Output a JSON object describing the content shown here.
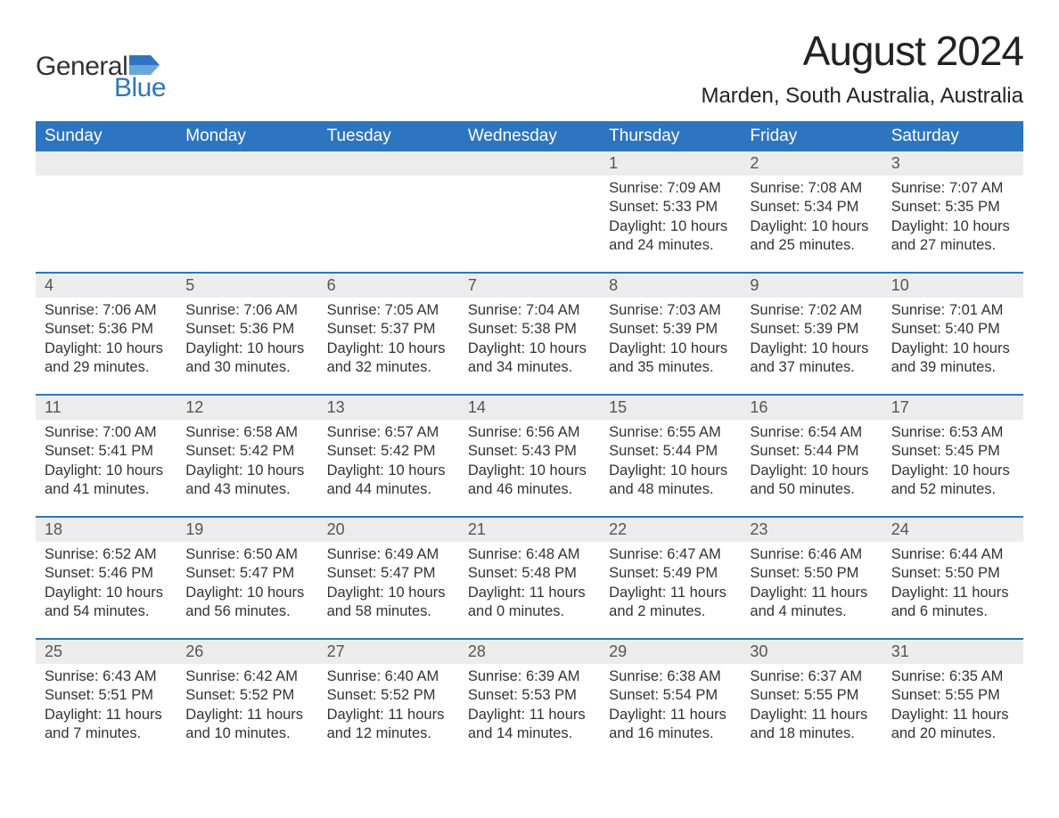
{
  "brand": {
    "text_general": "General",
    "text_blue": "Blue",
    "icon_color": "#2d75c0"
  },
  "title": "August 2024",
  "location": "Marden, South Australia, Australia",
  "style": {
    "header_bg": "#2d75c0",
    "header_text": "#ffffff",
    "daynum_bg": "#ececec",
    "row_border": "#2d75c0",
    "body_text": "#333333",
    "title_fontsize": 46,
    "location_fontsize": 24,
    "weekday_fontsize": 19,
    "daynum_fontsize": 18,
    "content_fontsize": 16.5
  },
  "weekdays": [
    "Sunday",
    "Monday",
    "Tuesday",
    "Wednesday",
    "Thursday",
    "Friday",
    "Saturday"
  ],
  "weeks": [
    [
      null,
      null,
      null,
      null,
      {
        "n": "1",
        "sunrise": "7:09 AM",
        "sunset": "5:33 PM",
        "daylight": "10 hours and 24 minutes."
      },
      {
        "n": "2",
        "sunrise": "7:08 AM",
        "sunset": "5:34 PM",
        "daylight": "10 hours and 25 minutes."
      },
      {
        "n": "3",
        "sunrise": "7:07 AM",
        "sunset": "5:35 PM",
        "daylight": "10 hours and 27 minutes."
      }
    ],
    [
      {
        "n": "4",
        "sunrise": "7:06 AM",
        "sunset": "5:36 PM",
        "daylight": "10 hours and 29 minutes."
      },
      {
        "n": "5",
        "sunrise": "7:06 AM",
        "sunset": "5:36 PM",
        "daylight": "10 hours and 30 minutes."
      },
      {
        "n": "6",
        "sunrise": "7:05 AM",
        "sunset": "5:37 PM",
        "daylight": "10 hours and 32 minutes."
      },
      {
        "n": "7",
        "sunrise": "7:04 AM",
        "sunset": "5:38 PM",
        "daylight": "10 hours and 34 minutes."
      },
      {
        "n": "8",
        "sunrise": "7:03 AM",
        "sunset": "5:39 PM",
        "daylight": "10 hours and 35 minutes."
      },
      {
        "n": "9",
        "sunrise": "7:02 AM",
        "sunset": "5:39 PM",
        "daylight": "10 hours and 37 minutes."
      },
      {
        "n": "10",
        "sunrise": "7:01 AM",
        "sunset": "5:40 PM",
        "daylight": "10 hours and 39 minutes."
      }
    ],
    [
      {
        "n": "11",
        "sunrise": "7:00 AM",
        "sunset": "5:41 PM",
        "daylight": "10 hours and 41 minutes."
      },
      {
        "n": "12",
        "sunrise": "6:58 AM",
        "sunset": "5:42 PM",
        "daylight": "10 hours and 43 minutes."
      },
      {
        "n": "13",
        "sunrise": "6:57 AM",
        "sunset": "5:42 PM",
        "daylight": "10 hours and 44 minutes."
      },
      {
        "n": "14",
        "sunrise": "6:56 AM",
        "sunset": "5:43 PM",
        "daylight": "10 hours and 46 minutes."
      },
      {
        "n": "15",
        "sunrise": "6:55 AM",
        "sunset": "5:44 PM",
        "daylight": "10 hours and 48 minutes."
      },
      {
        "n": "16",
        "sunrise": "6:54 AM",
        "sunset": "5:44 PM",
        "daylight": "10 hours and 50 minutes."
      },
      {
        "n": "17",
        "sunrise": "6:53 AM",
        "sunset": "5:45 PM",
        "daylight": "10 hours and 52 minutes."
      }
    ],
    [
      {
        "n": "18",
        "sunrise": "6:52 AM",
        "sunset": "5:46 PM",
        "daylight": "10 hours and 54 minutes."
      },
      {
        "n": "19",
        "sunrise": "6:50 AM",
        "sunset": "5:47 PM",
        "daylight": "10 hours and 56 minutes."
      },
      {
        "n": "20",
        "sunrise": "6:49 AM",
        "sunset": "5:47 PM",
        "daylight": "10 hours and 58 minutes."
      },
      {
        "n": "21",
        "sunrise": "6:48 AM",
        "sunset": "5:48 PM",
        "daylight": "11 hours and 0 minutes."
      },
      {
        "n": "22",
        "sunrise": "6:47 AM",
        "sunset": "5:49 PM",
        "daylight": "11 hours and 2 minutes."
      },
      {
        "n": "23",
        "sunrise": "6:46 AM",
        "sunset": "5:50 PM",
        "daylight": "11 hours and 4 minutes."
      },
      {
        "n": "24",
        "sunrise": "6:44 AM",
        "sunset": "5:50 PM",
        "daylight": "11 hours and 6 minutes."
      }
    ],
    [
      {
        "n": "25",
        "sunrise": "6:43 AM",
        "sunset": "5:51 PM",
        "daylight": "11 hours and 7 minutes."
      },
      {
        "n": "26",
        "sunrise": "6:42 AM",
        "sunset": "5:52 PM",
        "daylight": "11 hours and 10 minutes."
      },
      {
        "n": "27",
        "sunrise": "6:40 AM",
        "sunset": "5:52 PM",
        "daylight": "11 hours and 12 minutes."
      },
      {
        "n": "28",
        "sunrise": "6:39 AM",
        "sunset": "5:53 PM",
        "daylight": "11 hours and 14 minutes."
      },
      {
        "n": "29",
        "sunrise": "6:38 AM",
        "sunset": "5:54 PM",
        "daylight": "11 hours and 16 minutes."
      },
      {
        "n": "30",
        "sunrise": "6:37 AM",
        "sunset": "5:55 PM",
        "daylight": "11 hours and 18 minutes."
      },
      {
        "n": "31",
        "sunrise": "6:35 AM",
        "sunset": "5:55 PM",
        "daylight": "11 hours and 20 minutes."
      }
    ]
  ],
  "labels": {
    "sunrise_prefix": "Sunrise: ",
    "sunset_prefix": "Sunset: ",
    "daylight_prefix": "Daylight: "
  }
}
